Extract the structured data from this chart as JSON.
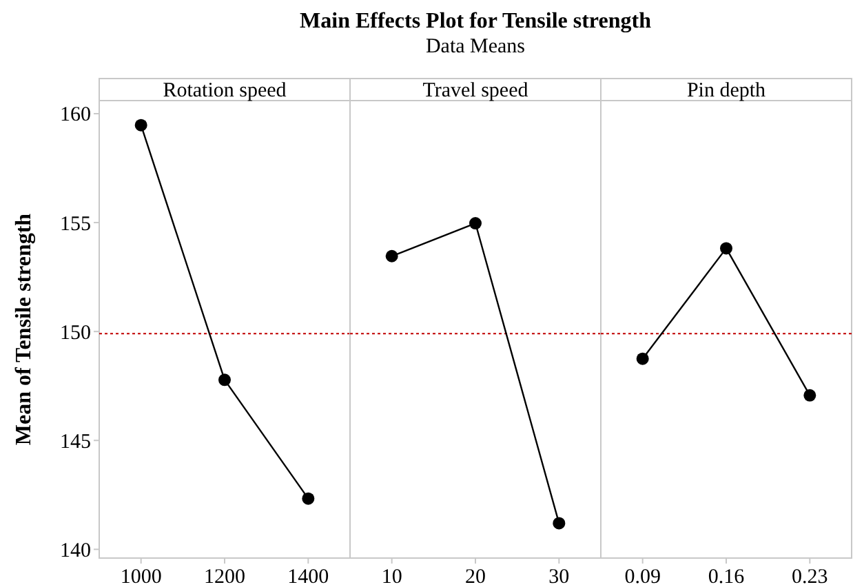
{
  "chart_data": [
    {
      "type": "line",
      "ylabel": "Mean of Tensile strength",
      "xlabel": "Rotation speed",
      "categories": [
        "1000",
        "1200",
        "1400"
      ],
      "series": [
        {
          "color": "#000000",
          "values": [
            159.47,
            147.78,
            142.33
          ]
        }
      ],
      "ylim": [
        139.6,
        160.6
      ],
      "yticks": [
        140,
        145,
        150,
        155,
        160
      ],
      "ref_lines": [
        {
          "axis": "y",
          "value": 149.9,
          "color": "#c00000",
          "line_style": "dotted"
        }
      ],
      "marker": "circle",
      "grid": false
    },
    {
      "type": "line",
      "title": "Main Effects Plot for Tensile strength",
      "subtitle": "Data Means",
      "xlabel": "Travel speed",
      "categories": [
        "10",
        "20",
        "30"
      ],
      "series": [
        {
          "color": "#000000",
          "values": [
            153.46,
            154.97,
            141.2
          ]
        }
      ],
      "ylim": [
        139.6,
        160.6
      ],
      "yticks": [
        140,
        145,
        150,
        155,
        160
      ],
      "tick_labels": "x",
      "ref_lines": [
        {
          "axis": "y",
          "value": 149.9,
          "color": "#c00000",
          "line_style": "dotted"
        }
      ],
      "marker": "circle",
      "grid": false
    },
    {
      "type": "line",
      "xlabel": "Pin depth",
      "categories": [
        "0.09",
        "0.16",
        "0.23"
      ],
      "series": [
        {
          "color": "#000000",
          "values": [
            148.75,
            153.82,
            147.07
          ]
        }
      ],
      "ylim": [
        139.6,
        160.6
      ],
      "yticks": [
        140,
        145,
        150,
        155,
        160
      ],
      "tick_labels": "x",
      "ref_lines": [
        {
          "axis": "y",
          "value": 149.9,
          "color": "#c00000",
          "line_style": "dotted"
        }
      ],
      "marker": "circle",
      "grid": false
    }
  ]
}
